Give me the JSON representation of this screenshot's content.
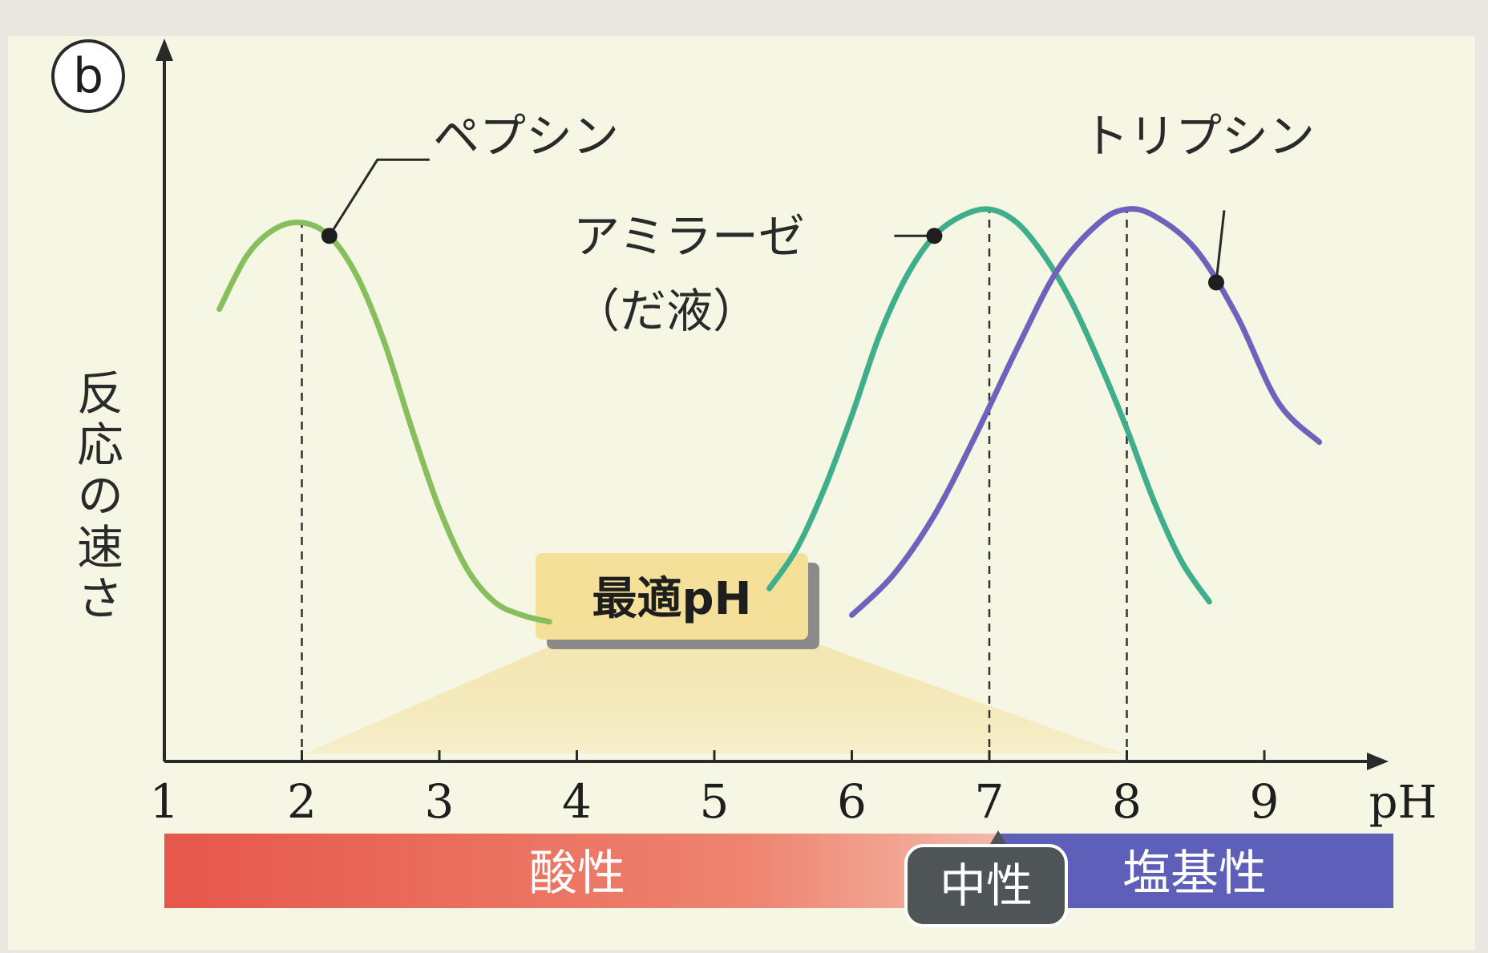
{
  "figure_label": "b",
  "colors": {
    "panel_bg": "#f6f6e4",
    "axis": "#2a2a2a",
    "pepsin": "#86bf5c",
    "amylase": "#3fae8b",
    "trypsin": "#6f62bc",
    "acidic": "#e8584b",
    "neutral": "#4f5456",
    "basic": "#5e5fb8",
    "callout": "#f5e09a"
  },
  "chart_data": {
    "type": "line",
    "xlabel": "pH",
    "ylabel": "反応の速さ",
    "xlim": [
      1,
      9.9
    ],
    "ylim": [
      0,
      1
    ],
    "xticks": [
      1,
      2,
      3,
      4,
      5,
      6,
      7,
      8,
      9
    ],
    "grid": false,
    "series": [
      {
        "name": "ペプシン",
        "optimum_ph": 2,
        "x": [
          1.4,
          1.6,
          1.8,
          2.0,
          2.2,
          2.4,
          2.6,
          2.8,
          3.0,
          3.2,
          3.4,
          3.6,
          3.8
        ],
        "y": [
          0.68,
          0.76,
          0.8,
          0.81,
          0.79,
          0.73,
          0.63,
          0.5,
          0.38,
          0.29,
          0.24,
          0.22,
          0.21
        ]
      },
      {
        "name": "アミラーゼ",
        "name_sub": "（だ液）",
        "optimum_ph": 7,
        "x": [
          5.4,
          5.6,
          5.8,
          6.0,
          6.2,
          6.4,
          6.6,
          6.8,
          7.0,
          7.2,
          7.4,
          7.6,
          7.8,
          8.0,
          8.2,
          8.4,
          8.6
        ],
        "y": [
          0.26,
          0.32,
          0.41,
          0.52,
          0.64,
          0.73,
          0.79,
          0.82,
          0.83,
          0.81,
          0.76,
          0.69,
          0.6,
          0.5,
          0.39,
          0.3,
          0.24
        ]
      },
      {
        "name": "トリプシン",
        "optimum_ph": 8,
        "x": [
          6.0,
          6.3,
          6.6,
          6.9,
          7.2,
          7.5,
          7.8,
          8.0,
          8.2,
          8.5,
          8.8,
          9.1,
          9.4
        ],
        "y": [
          0.22,
          0.28,
          0.37,
          0.49,
          0.62,
          0.74,
          0.81,
          0.83,
          0.82,
          0.77,
          0.67,
          0.54,
          0.48
        ]
      }
    ],
    "callout": "最適pH",
    "ph_bands": [
      {
        "label": "酸性",
        "from": 1,
        "to": 7
      },
      {
        "label": "中性",
        "at": 7
      },
      {
        "label": "塩基性",
        "from": 7,
        "to": 9.9
      }
    ]
  }
}
